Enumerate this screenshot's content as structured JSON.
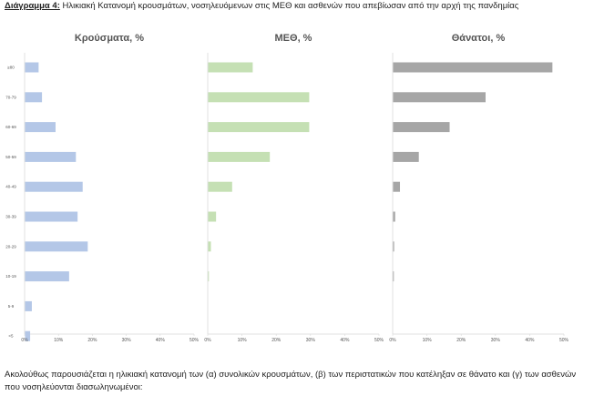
{
  "caption": {
    "label": "Διάγραμμα 4:",
    "text": "Ηλικιακή Κατανομή κρουσμάτων, νοσηλευόμενων στις ΜΕΘ και ασθενών που απεβίωσαν από την αρχή της πανδημίας"
  },
  "body_text": "Ακολούθως παρουσιάζεται η ηλικιακή κατανομή των (α) συνολικών κρουσμάτων, (β) των περιστατικών που κατέληξαν σε θάνατο και (γ) των ασθενών που νοσηλεύονται διασωληνωμένοι:",
  "chart_data": [
    {
      "type": "bar",
      "orientation": "horizontal",
      "title": "Κρούσματα, %",
      "categories": [
        "≥80",
        "70-79",
        "60-69",
        "50-59",
        "40-49",
        "30-39",
        "20-29",
        "10-19",
        "5-9",
        "<5"
      ],
      "values": [
        4,
        5,
        9,
        15,
        17,
        15.5,
        18.5,
        13,
        2,
        1.5
      ],
      "xlim": [
        0,
        50
      ],
      "xticks": [
        "0%",
        "10%",
        "20%",
        "30%",
        "40%",
        "50%"
      ],
      "color": "#b4c7e7",
      "grid": false
    },
    {
      "type": "bar",
      "orientation": "horizontal",
      "title": "ΜΕΘ, %",
      "categories": [
        "≥80",
        "70-79",
        "60-69",
        "50-59",
        "40-49",
        "30-39",
        "20-29",
        "10-19",
        "5-9",
        "<5"
      ],
      "values": [
        13,
        29.5,
        29.5,
        18,
        7,
        2.3,
        0.8,
        0.2,
        0,
        0
      ],
      "xlim": [
        0,
        50
      ],
      "xticks": [
        "0%",
        "10%",
        "20%",
        "30%",
        "40%",
        "50%"
      ],
      "color": "#c5e0b4",
      "grid": false
    },
    {
      "type": "bar",
      "orientation": "horizontal",
      "title": "Θάνατοι, %",
      "categories": [
        "≥80",
        "70-79",
        "60-69",
        "50-59",
        "40-49",
        "30-39",
        "20-29",
        "10-19",
        "5-9",
        "<5"
      ],
      "values": [
        46.5,
        27,
        16.5,
        7.5,
        2,
        0.6,
        0.3,
        0.2,
        0,
        0
      ],
      "xlim": [
        0,
        50
      ],
      "xticks": [
        "0%",
        "10%",
        "20%",
        "30%",
        "40%",
        "50%"
      ],
      "color": "#a6a6a6",
      "grid": false
    }
  ]
}
